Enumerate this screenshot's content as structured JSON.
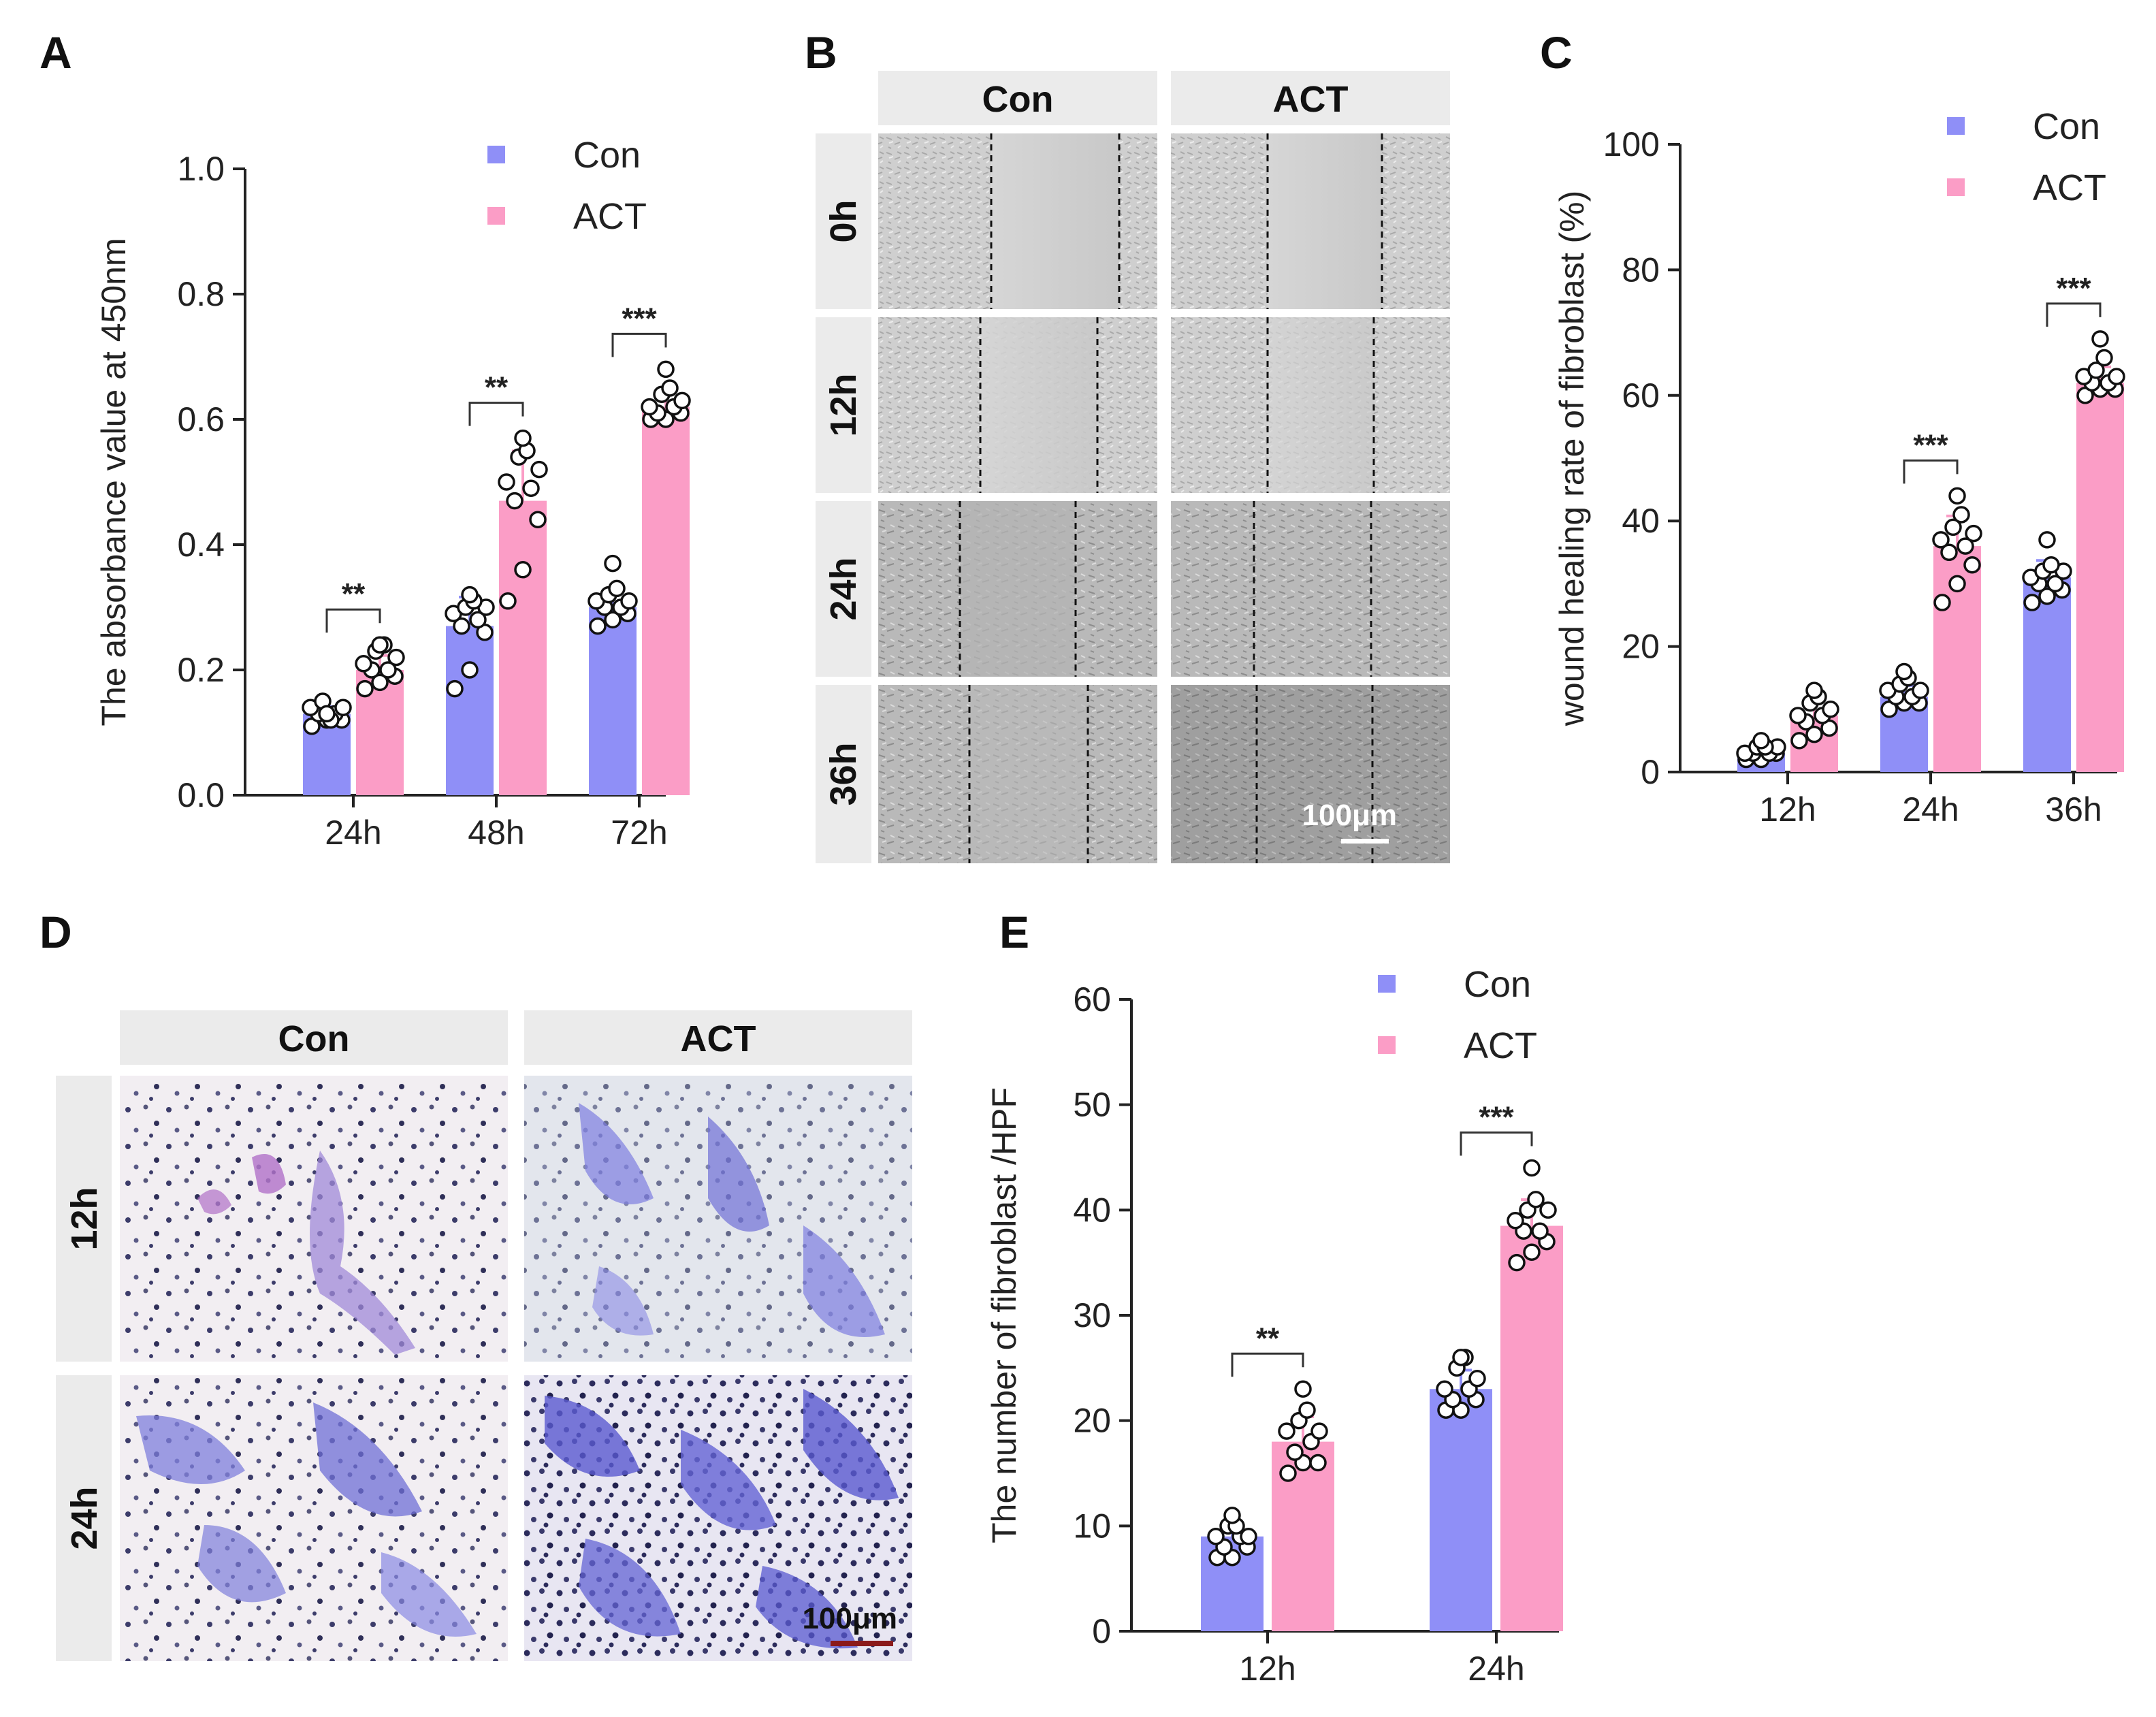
{
  "figure": {
    "panel_letters": [
      "A",
      "B",
      "C",
      "D",
      "E"
    ],
    "colors": {
      "con": "#8f8ff7",
      "act": "#fb9dc6",
      "hdr_bg": "#ebebeb",
      "purple_stain": "#6f6fd6"
    }
  },
  "panel_b": {
    "columns": [
      "Con",
      "ACT"
    ],
    "rows": [
      "0h",
      "12h",
      "24h",
      "36h"
    ],
    "scale_bar": "100μm"
  },
  "panel_d": {
    "columns": [
      "Con",
      "ACT"
    ],
    "rows": [
      "12h",
      "24h"
    ],
    "scale_bar": "100μm"
  },
  "chart_data": [
    {
      "panel": "A",
      "type": "bar",
      "categories": [
        "24h",
        "48h",
        "72h"
      ],
      "series": [
        {
          "name": "Con",
          "color": "#8f8ff7",
          "values": [
            0.13,
            0.27,
            0.3
          ],
          "points": [
            [
              0.11,
              0.12,
              0.12,
              0.13,
              0.13,
              0.14,
              0.14,
              0.15,
              0.12,
              0.13
            ],
            [
              0.17,
              0.2,
              0.26,
              0.27,
              0.28,
              0.29,
              0.3,
              0.3,
              0.31,
              0.32
            ],
            [
              0.27,
              0.28,
              0.29,
              0.3,
              0.3,
              0.31,
              0.31,
              0.32,
              0.33,
              0.37
            ]
          ]
        },
        {
          "name": "ACT",
          "color": "#fb9dc6",
          "values": [
            0.2,
            0.47,
            0.62
          ],
          "points": [
            [
              0.17,
              0.18,
              0.19,
              0.2,
              0.2,
              0.21,
              0.22,
              0.23,
              0.24,
              0.24
            ],
            [
              0.31,
              0.36,
              0.44,
              0.47,
              0.49,
              0.5,
              0.52,
              0.54,
              0.55,
              0.57
            ],
            [
              0.6,
              0.6,
              0.61,
              0.61,
              0.62,
              0.62,
              0.63,
              0.64,
              0.65,
              0.68
            ]
          ]
        }
      ],
      "ylabel": "The absorbance value at 450nm",
      "ylim": [
        0,
        1.0
      ],
      "yticks": [
        "0.0",
        "0.2",
        "0.4",
        "0.6",
        "0.8",
        "1.0"
      ],
      "significance": [
        "**",
        "**",
        "***"
      ],
      "legend": [
        "Con",
        "ACT"
      ],
      "legend_position": "top-right"
    },
    {
      "panel": "C",
      "type": "bar",
      "categories": [
        "12h",
        "24h",
        "36h"
      ],
      "series": [
        {
          "name": "Con",
          "color": "#8f8ff7",
          "values": [
            3,
            12,
            31
          ],
          "points": [
            [
              2,
              2,
              3,
              3,
              3,
              3,
              4,
              4,
              4,
              5
            ],
            [
              10,
              11,
              11,
              12,
              12,
              13,
              13,
              14,
              15,
              16
            ],
            [
              27,
              28,
              29,
              30,
              30,
              31,
              32,
              32,
              33,
              37
            ]
          ]
        },
        {
          "name": "ACT",
          "color": "#fb9dc6",
          "values": [
            9,
            36,
            62
          ],
          "points": [
            [
              5,
              6,
              7,
              8,
              9,
              9,
              10,
              11,
              12,
              13
            ],
            [
              27,
              30,
              33,
              35,
              36,
              37,
              38,
              39,
              41,
              44
            ],
            [
              60,
              61,
              61,
              62,
              62,
              63,
              63,
              64,
              66,
              69
            ]
          ]
        }
      ],
      "ylabel": "wound healing rate of fibroblast (%)",
      "ylim": [
        0,
        100
      ],
      "yticks": [
        "0",
        "20",
        "40",
        "60",
        "80",
        "100"
      ],
      "significance": [
        "",
        "***",
        "***"
      ],
      "legend": [
        "Con",
        "ACT"
      ],
      "legend_position": "top-right"
    },
    {
      "panel": "E",
      "type": "bar",
      "categories": [
        "12h",
        "24h"
      ],
      "series": [
        {
          "name": "Con",
          "color": "#8f8ff7",
          "values": [
            9,
            23
          ],
          "points": [
            [
              7,
              7,
              8,
              8,
              9,
              9,
              9,
              10,
              10,
              11
            ],
            [
              21,
              21,
              22,
              22,
              23,
              23,
              24,
              25,
              26,
              26
            ]
          ]
        },
        {
          "name": "ACT",
          "color": "#fb9dc6",
          "values": [
            18,
            38.5
          ],
          "points": [
            [
              15,
              16,
              16,
              17,
              18,
              19,
              19,
              20,
              21,
              23
            ],
            [
              35,
              36,
              37,
              38,
              38,
              39,
              40,
              40,
              41,
              44
            ]
          ]
        }
      ],
      "ylabel": "The number of fibroblast /HPF",
      "ylim": [
        0,
        60
      ],
      "yticks": [
        "0",
        "10",
        "20",
        "30",
        "40",
        "50",
        "60"
      ],
      "significance": [
        "**",
        "***"
      ],
      "legend": [
        "Con",
        "ACT"
      ],
      "legend_position": "top-right"
    }
  ]
}
